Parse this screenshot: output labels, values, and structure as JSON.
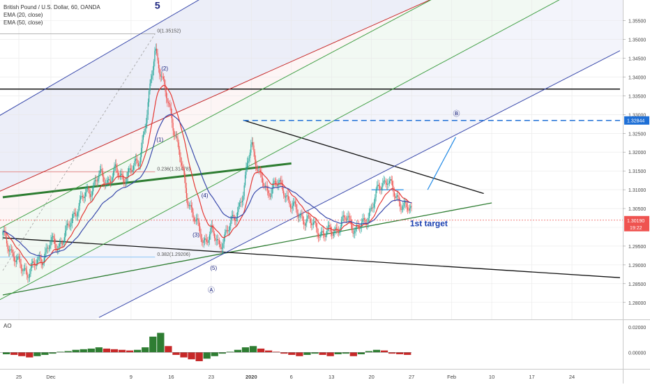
{
  "chart_data": {
    "type": "candlestick",
    "symbol": {
      "title": "British Pound / U.S. Dollar, 60, OANDA",
      "indicators": [
        "EMA (20, close)",
        "EMA (50, close)"
      ]
    },
    "colors": {
      "up": "#26a69a",
      "down": "#ef5350",
      "ema20": "#e53935",
      "ema50": "#3949ab",
      "price_badge_bg": "#ef5350",
      "target_badge_bg": "#1e6fd6",
      "grid": "#e8e8e8",
      "wave_label": "#1a237e",
      "ao_up": "#2e7d32",
      "ao_down": "#c62828"
    },
    "price_axis": {
      "min": 1.2755,
      "max": 1.3605,
      "ticks": [
        "1.28000",
        "1.28500",
        "1.29000",
        "1.29500",
        "1.30000",
        "1.30500",
        "1.31000",
        "1.31500",
        "1.32000",
        "1.32500",
        "1.33000",
        "1.33500",
        "1.34000",
        "1.34500",
        "1.35000",
        "1.35500"
      ],
      "current_price": "1.30190",
      "current_price_value": 1.3019,
      "countdown": "19:22",
      "target_price": "1.32844",
      "target_price_value": 1.32844,
      "hidden_tick": "1.30000"
    },
    "time_axis": {
      "ticks": [
        {
          "label": "25",
          "t": 2
        },
        {
          "label": "Dec",
          "t": 6
        },
        {
          "label": "9",
          "t": 16
        },
        {
          "label": "16",
          "t": 21
        },
        {
          "label": "23",
          "t": 26
        },
        {
          "label": "2020",
          "t": 31
        },
        {
          "label": "6",
          "t": 36
        },
        {
          "label": "13",
          "t": 41
        },
        {
          "label": "20",
          "t": 46
        },
        {
          "label": "27",
          "t": 51
        },
        {
          "label": "Feb",
          "t": 56
        },
        {
          "label": "10",
          "t": 61
        },
        {
          "label": "17",
          "t": 66
        },
        {
          "label": "24",
          "t": 71
        }
      ],
      "t_min": 0,
      "t_max": 77
    },
    "price_path": [
      [
        0,
        1.298
      ],
      [
        1,
        1.294
      ],
      [
        2,
        1.29
      ],
      [
        3,
        1.288
      ],
      [
        4,
        1.29
      ],
      [
        5,
        1.292
      ],
      [
        6,
        1.296
      ],
      [
        7,
        1.295
      ],
      [
        8,
        1.299
      ],
      [
        9,
        1.304
      ],
      [
        10,
        1.308
      ],
      [
        11,
        1.31
      ],
      [
        12,
        1.314
      ],
      [
        13,
        1.312
      ],
      [
        14,
        1.315
      ],
      [
        15,
        1.313
      ],
      [
        16,
        1.315
      ],
      [
        17,
        1.318
      ],
      [
        18,
        1.33
      ],
      [
        19,
        1.348
      ],
      [
        20,
        1.338
      ],
      [
        21,
        1.33
      ],
      [
        22,
        1.32
      ],
      [
        23,
        1.308
      ],
      [
        24,
        1.302
      ],
      [
        25,
        1.296
      ],
      [
        26,
        1.299
      ],
      [
        27,
        1.295
      ],
      [
        28,
        1.299
      ],
      [
        29,
        1.303
      ],
      [
        30,
        1.309
      ],
      [
        31,
        1.323
      ],
      [
        32,
        1.314
      ],
      [
        33,
        1.309
      ],
      [
        34,
        1.312
      ],
      [
        35,
        1.31
      ],
      [
        36,
        1.306
      ],
      [
        37,
        1.303
      ],
      [
        38,
        1.302
      ],
      [
        39,
        1.3
      ],
      [
        40,
        1.298
      ],
      [
        41,
        1.299
      ],
      [
        42,
        1.3
      ],
      [
        43,
        1.303
      ],
      [
        44,
        1.299
      ],
      [
        45,
        1.301
      ],
      [
        46,
        1.305
      ],
      [
        47,
        1.311
      ],
      [
        48,
        1.313
      ],
      [
        49,
        1.308
      ],
      [
        50,
        1.306
      ],
      [
        51,
        1.304
      ]
    ],
    "trend_lines": [
      {
        "name": "neckline-green",
        "color": "#2e7d32",
        "width": 3,
        "p1": [
          0,
          1.308
        ],
        "p2": [
          36,
          1.317
        ]
      },
      {
        "name": "resistance-black-upper",
        "color": "#111111",
        "width": 1.5,
        "p1": [
          -1,
          1.3368
        ],
        "p2": [
          77,
          1.3368
        ]
      },
      {
        "name": "triangle-top",
        "color": "#111111",
        "width": 1.3,
        "p1": [
          30,
          1.3285
        ],
        "p2": [
          60,
          1.309
        ]
      },
      {
        "name": "triangle-bottom",
        "color": "#2e7d32",
        "width": 1.3,
        "p1": [
          0,
          1.282
        ],
        "p2": [
          61,
          1.3065
        ]
      },
      {
        "name": "long-support-black",
        "color": "#111111",
        "width": 1.3,
        "p1": [
          0,
          1.2972
        ],
        "p2": [
          77,
          1.2866
        ]
      },
      {
        "name": "channel-blue-upper",
        "color": "#3949ab",
        "width": 1,
        "p1": [
          -1,
          1.329
        ],
        "p2": [
          25,
          1.3612
        ]
      },
      {
        "name": "channel-blue-lower",
        "color": "#3949ab",
        "width": 1,
        "p1": [
          12,
          1.276
        ],
        "p2": [
          77,
          1.347
        ]
      },
      {
        "name": "channel-red-1",
        "color": "#c62828",
        "width": 1,
        "p1": [
          -1,
          1.309
        ],
        "p2": [
          54,
          1.3612
        ]
      },
      {
        "name": "channel-green-1",
        "color": "#43a047",
        "width": 1,
        "p1": [
          -1,
          1.299
        ],
        "p2": [
          54,
          1.3612
        ]
      },
      {
        "name": "channel-green-2",
        "color": "#43a047",
        "width": 1,
        "p1": [
          -1,
          1.28
        ],
        "p2": [
          70,
          1.3612
        ]
      },
      {
        "name": "arrow-blue",
        "color": "#1e88e5",
        "width": 1.2,
        "p1": [
          53,
          1.31
        ],
        "p2": [
          56.5,
          1.324
        ]
      },
      {
        "name": "small-blue-h",
        "color": "#1e88e5",
        "width": 1.2,
        "p1": [
          46,
          1.31
        ],
        "p2": [
          50,
          1.31
        ]
      }
    ],
    "target_line": {
      "p1": [
        30,
        1.32844
      ],
      "p2": [
        77,
        1.32844
      ],
      "color": "#1e6fd6"
    },
    "fib_lines": [
      {
        "label": "0(1.35152)",
        "value": 1.35152,
        "t_from": -1,
        "t_to": 19
      },
      {
        "label": "0.236(1.31478)",
        "value": 1.31478,
        "t_from": -1,
        "t_to": 19
      },
      {
        "label": "0.382(1.29206)",
        "value": 1.29206,
        "t_from": -1,
        "t_to": 19
      }
    ],
    "wave_labels": [
      {
        "text": "5",
        "t": 19.3,
        "v": 1.3582,
        "size": 14,
        "bold": true
      },
      {
        "text": "(2)",
        "t": 20.2,
        "v": 1.3418,
        "size": 8
      },
      {
        "text": "(1)",
        "t": 19.6,
        "v": 1.3228,
        "size": 8
      },
      {
        "text": "(4)",
        "t": 25.2,
        "v": 1.308,
        "size": 8
      },
      {
        "text": "(3)",
        "t": 24.1,
        "v": 1.2975,
        "size": 8
      },
      {
        "text": "(5)",
        "t": 26.3,
        "v": 1.2887,
        "size": 8
      },
      {
        "text": "Ⓐ",
        "t": 26.0,
        "v": 1.2826,
        "size": 10
      },
      {
        "text": "Ⓑ",
        "t": 56.6,
        "v": 1.3296,
        "size": 10
      }
    ],
    "annotation": {
      "text": "1st target",
      "t": 50.8,
      "v": 1.3003
    },
    "ao": {
      "label": "AO",
      "ticks": [
        "0.02000",
        "0.00000"
      ],
      "min": -0.012,
      "max": 0.024,
      "values": [
        -0.0015,
        -0.002,
        -0.003,
        -0.004,
        -0.003,
        -0.002,
        -0.001,
        0.0005,
        0.001,
        0.002,
        0.0025,
        0.003,
        0.004,
        0.003,
        0.0025,
        0.002,
        0.0015,
        0.002,
        0.004,
        0.0125,
        0.0155,
        0.005,
        -0.002,
        -0.004,
        -0.0055,
        -0.007,
        -0.005,
        -0.003,
        -0.001,
        0.0005,
        0.002,
        0.004,
        0.005,
        0.003,
        0.0015,
        0.0005,
        -0.001,
        -0.002,
        -0.003,
        -0.002,
        -0.001,
        -0.002,
        -0.003,
        -0.0015,
        -0.001,
        -0.003,
        -0.0015,
        0.001,
        0.002,
        0.0015,
        -0.001,
        -0.0015,
        -0.002
      ]
    }
  }
}
